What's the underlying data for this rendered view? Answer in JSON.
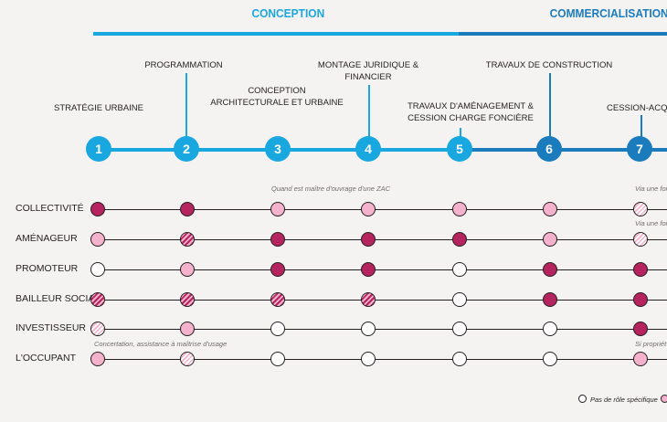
{
  "phases": {
    "conception": "CONCEPTION",
    "commercialisation": "COMMERCIALISATION"
  },
  "stages": [
    {
      "number": "1",
      "label": "STRATÉGIE URBAINE"
    },
    {
      "number": "2",
      "label": "PROGRAMMATION"
    },
    {
      "number": "3",
      "label_line1": "CONCEPTION",
      "label_line2": "ARCHITECTURALE ET URBAINE"
    },
    {
      "number": "4",
      "label_line1": "MONTAGE JURIDIQUE &",
      "label_line2": "FINANCIER"
    },
    {
      "number": "5",
      "label_line1": "TRAVAUX D'AMÉNAGEMENT &",
      "label_line2": "CESSION CHARGE FONCIÈRE"
    },
    {
      "number": "6",
      "label": "TRAVAUX DE CONSTRUCTION"
    },
    {
      "number": "7",
      "label": "CESSION-ACQUIS"
    }
  ],
  "actors": [
    {
      "name": "COLLECTIVITÉ",
      "roles": [
        "full",
        "full",
        "light",
        "light",
        "light",
        "light",
        "hatch-light"
      ]
    },
    {
      "name": "AMÉNAGEUR",
      "roles": [
        "light",
        "hatch-dark",
        "full",
        "full",
        "full",
        "light",
        "hatch-light"
      ]
    },
    {
      "name": "PROMOTEUR",
      "roles": [
        "none",
        "light",
        "full",
        "full",
        "none",
        "full",
        "full"
      ]
    },
    {
      "name": "BAILLEUR SOCIAL",
      "roles": [
        "hatch-dark",
        "hatch-dark",
        "hatch-dark",
        "hatch-dark",
        "none",
        "full",
        "full"
      ]
    },
    {
      "name": "INVESTISSEUR",
      "roles": [
        "hatch-light",
        "light",
        "none",
        "none",
        "none",
        "none",
        "full"
      ]
    },
    {
      "name": "L'OCCUPANT",
      "roles": [
        "light",
        "hatch-light",
        "none",
        "none",
        "none",
        "none",
        "light"
      ]
    }
  ],
  "notes": {
    "zac": "Quand est maître d'ouvrage d'une ZAC",
    "via1": "Via une for",
    "via2": "Via une fon",
    "concertation": "Concertation, assistance à maîtrise d'usage",
    "si": "Si propriét"
  },
  "legend": {
    "no_role": "Pas de rôle spécifique"
  },
  "colors": {
    "conception": "#19a7df",
    "commercialisation": "#1a7bbd",
    "full_role": "#b5245f",
    "partial_role": "#f4b2cc"
  }
}
